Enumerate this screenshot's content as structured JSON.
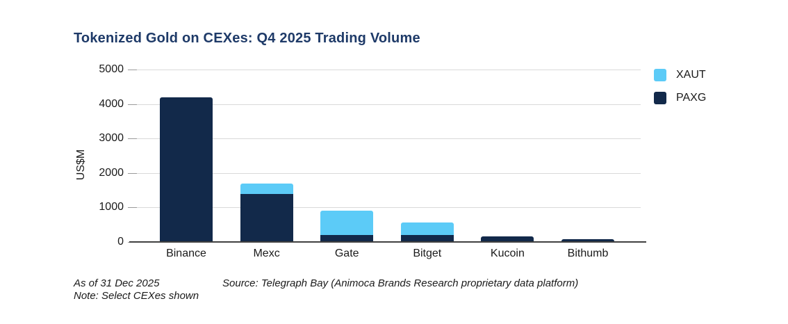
{
  "title": "Tokenized Gold on CEXes: Q4 2025 Trading Volume",
  "chart_data": {
    "type": "bar",
    "stacked": true,
    "title": "Tokenized Gold on CEXes: Q4 2025 Trading Volume",
    "categories": [
      "Binance",
      "Mexc",
      "Gate",
      "Bitget",
      "Kucoin",
      "Bithumb"
    ],
    "series": [
      {
        "name": "XAUT",
        "color": "#5CCBF7",
        "values": [
          0,
          300,
          700,
          370,
          0,
          0
        ]
      },
      {
        "name": "PAXG",
        "color": "#12294A",
        "values": [
          4200,
          1390,
          200,
          200,
          160,
          80
        ]
      }
    ],
    "totals": [
      4200,
      1690,
      900,
      570,
      160,
      80
    ],
    "xlabel": "",
    "ylabel": "US$M",
    "ylim": [
      0,
      5000
    ],
    "yticks": [
      0,
      1000,
      2000,
      3000,
      4000,
      5000
    ],
    "grid": true,
    "legend_position": "top-right"
  },
  "legend": {
    "items": [
      {
        "label": "XAUT",
        "color": "#5CCBF7"
      },
      {
        "label": "PAXG",
        "color": "#12294A"
      }
    ]
  },
  "footnotes": {
    "as_of": "As of 31 Dec 2025",
    "note": "Note: Select CEXes shown",
    "source": "Source: Telegraph Bay (Animoca Brands Research proprietary data platform)"
  },
  "colors": {
    "title": "#1E3A68",
    "gridline": "#d9d9d9",
    "axis_line": "#404040",
    "background": "#ffffff"
  }
}
